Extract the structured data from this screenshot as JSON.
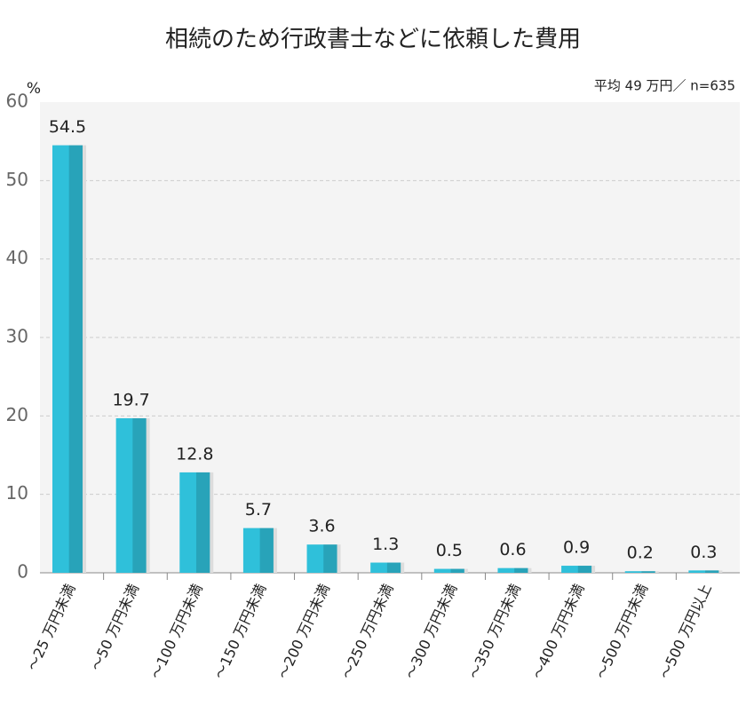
{
  "chart_data": {
    "type": "bar",
    "title": "相続のため行政書士などに依頼した費用",
    "subtitle": "平均 49 万円／ n=635",
    "y_label": "%",
    "categories": [
      "～25 万円未満",
      "～50 万円未満",
      "～100 万円未満",
      "～150 万円未満",
      "～200 万円未満",
      "～250 万円未満",
      "～300 万円未満",
      "～350 万円未満",
      "～400 万円未満",
      "～500 万円未満",
      "～500 万円以上"
    ],
    "values": [
      54.5,
      19.7,
      12.8,
      5.7,
      3.6,
      1.3,
      0.5,
      0.6,
      0.9,
      0.2,
      0.3
    ],
    "color": "#2fc0da",
    "ylim": [
      0,
      60
    ],
    "yticks": [
      0,
      10,
      20,
      30,
      40,
      50,
      60
    ],
    "grid": true
  }
}
